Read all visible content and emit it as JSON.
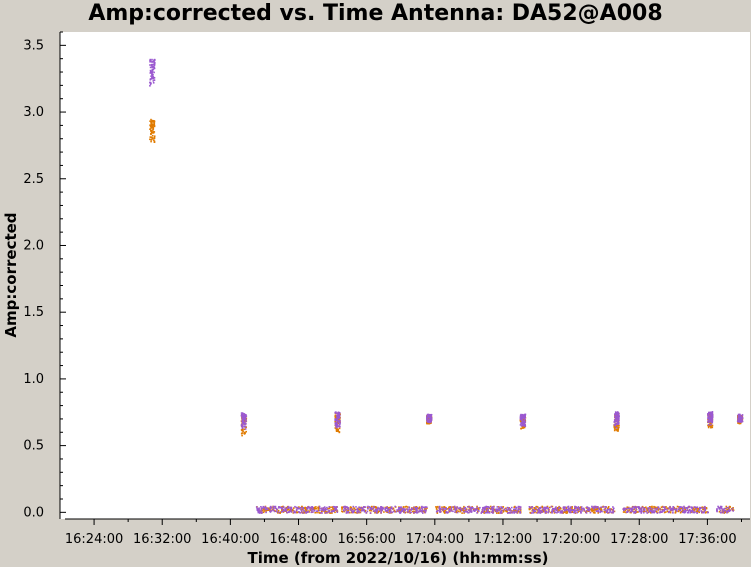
{
  "chart_data": {
    "type": "scatter",
    "title": "Amp:corrected vs. Time Antenna: DA52@A008",
    "xlabel": "Time (from 2022/10/16) (hh:mm:ss)",
    "ylabel": "Amp:corrected",
    "x_ticks": [
      "16:24:00",
      "16:32:00",
      "16:40:00",
      "16:48:00",
      "16:56:00",
      "17:04:00",
      "17:12:00",
      "17:20:00",
      "17:28:00",
      "17:36:00"
    ],
    "y_ticks": [
      "0.0",
      "0.5",
      "1.0",
      "1.5",
      "2.0",
      "2.5",
      "3.0",
      "3.5"
    ],
    "x_range": [
      "16:20:00",
      "17:41:00"
    ],
    "ylim": [
      -0.05,
      3.6
    ],
    "grid": false,
    "colors": {
      "purple": "#9b59d0",
      "orange": "#e07b00",
      "background": "#ffffff",
      "frame": "#d4d0c8"
    },
    "calibrator_scans": [
      {
        "time": "16:30:45",
        "purple": [
          3.2,
          3.4
        ],
        "orange": [
          2.78,
          2.95
        ]
      },
      {
        "time": "16:41:30",
        "purple": [
          0.63,
          0.75
        ],
        "orange": [
          0.58,
          0.74
        ]
      },
      {
        "time": "16:52:30",
        "purple": [
          0.64,
          0.76
        ],
        "orange": [
          0.6,
          0.75
        ]
      },
      {
        "time": "17:03:15",
        "purple": [
          0.68,
          0.74
        ],
        "orange": [
          0.67,
          0.73
        ]
      },
      {
        "time": "17:14:15",
        "purple": [
          0.65,
          0.74
        ],
        "orange": [
          0.63,
          0.73
        ]
      },
      {
        "time": "17:25:15",
        "purple": [
          0.64,
          0.76
        ],
        "orange": [
          0.61,
          0.75
        ]
      },
      {
        "time": "17:36:15",
        "purple": [
          0.66,
          0.76
        ],
        "orange": [
          0.64,
          0.75
        ]
      },
      {
        "time": "17:39:45",
        "purple": [
          0.68,
          0.74
        ],
        "orange": [
          0.67,
          0.73
        ]
      }
    ],
    "target_scans": [
      {
        "start": "16:43:00",
        "end": "16:52:30",
        "range": [
          0.0,
          0.05
        ]
      },
      {
        "start": "16:53:00",
        "end": "17:03:00",
        "range": [
          0.0,
          0.05
        ]
      },
      {
        "start": "17:04:00",
        "end": "17:14:00",
        "range": [
          0.0,
          0.05
        ]
      },
      {
        "start": "17:15:00",
        "end": "17:25:00",
        "range": [
          0.0,
          0.05
        ]
      },
      {
        "start": "17:26:00",
        "end": "17:36:00",
        "range": [
          0.0,
          0.05
        ]
      },
      {
        "start": "17:37:00",
        "end": "17:39:00",
        "range": [
          0.0,
          0.05
        ]
      }
    ]
  }
}
